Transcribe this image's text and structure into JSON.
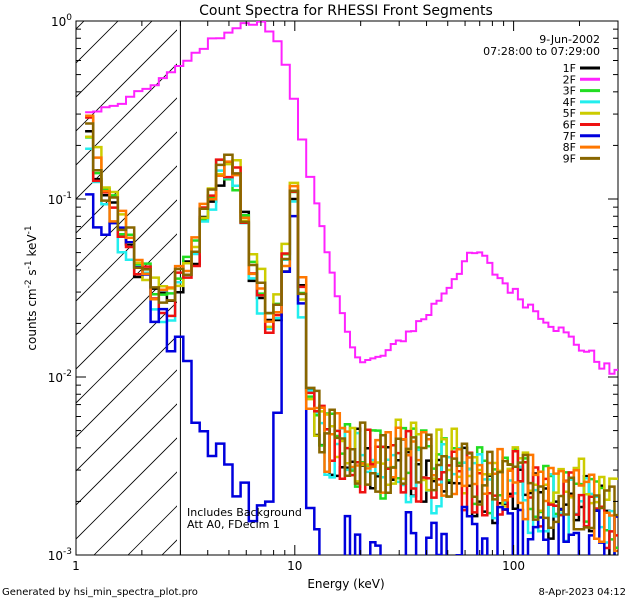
{
  "chart_data": {
    "type": "line",
    "title": "Count Spectra for RHESSI Front Segments",
    "xlabel": "Energy (keV)",
    "ylabel_parts": [
      "counts cm",
      "-2",
      " s",
      "-1",
      " keV",
      "-1"
    ],
    "xscale": "log",
    "yscale": "log",
    "xlim": [
      1,
      300
    ],
    "ylim": [
      0.001,
      1
    ],
    "x_ticks": [
      {
        "value": 1,
        "label": "1"
      },
      {
        "value": 10,
        "label": "10"
      },
      {
        "value": 100,
        "label": "100"
      }
    ],
    "y_ticks": [
      {
        "value": 0.001,
        "base": "10",
        "exp": "-3"
      },
      {
        "value": 0.01,
        "base": "10",
        "exp": "-2"
      },
      {
        "value": 0.1,
        "base": "10",
        "exp": "-1"
      },
      {
        "value": 1,
        "base": "10",
        "exp": "0"
      }
    ],
    "hatch_region_keV": [
      1,
      3
    ],
    "info": {
      "date": "9-Jun-2002",
      "time_range": "07:28:00 to 07:29:00",
      "note_line1": "Includes Background",
      "note_line2": "Att A0, FDecim 1"
    },
    "legend_position": "top-right",
    "series": [
      {
        "name": "1F",
        "color": "#000000",
        "base": 0.3
      },
      {
        "name": "2F",
        "color": "#ff22ff",
        "base": 0.3
      },
      {
        "name": "3F",
        "color": "#22dd22",
        "base": 0.3
      },
      {
        "name": "4F",
        "color": "#22eeee",
        "base": 0.3
      },
      {
        "name": "5F",
        "color": "#cccc00",
        "base": 0.3
      },
      {
        "name": "6F",
        "color": "#ee1111",
        "base": 0.3
      },
      {
        "name": "7F",
        "color": "#0000dd",
        "base": 0.3
      },
      {
        "name": "8F",
        "color": "#ff7700",
        "base": 0.3
      },
      {
        "name": "9F",
        "color": "#886600",
        "base": 0.3
      }
    ],
    "segment_2F": {
      "x": [
        1.1,
        1.5,
        2,
        3,
        4,
        5,
        6,
        7,
        8,
        9,
        10,
        11,
        12,
        13,
        14,
        16,
        18,
        20,
        25,
        30,
        40,
        50,
        60,
        70,
        80,
        100,
        150,
        200,
        250,
        300
      ],
      "y": [
        0.3,
        0.33,
        0.4,
        0.55,
        0.75,
        0.88,
        0.96,
        0.97,
        0.85,
        0.6,
        0.35,
        0.2,
        0.12,
        0.08,
        0.05,
        0.025,
        0.016,
        0.012,
        0.013,
        0.016,
        0.022,
        0.032,
        0.045,
        0.05,
        0.04,
        0.03,
        0.02,
        0.015,
        0.012,
        0.01
      ]
    },
    "segment_typical": {
      "x": [
        1.1,
        1.3,
        1.5,
        1.7,
        2,
        2.3,
        2.7,
        3,
        3.5,
        4,
        4.5,
        5,
        5.5,
        6,
        6.5,
        7,
        7.5,
        8,
        8.5,
        9,
        9.5,
        10,
        10.5,
        11,
        11.5,
        12,
        13,
        14,
        16,
        18,
        20,
        25,
        30,
        40,
        50,
        60,
        80,
        100,
        150,
        200,
        250,
        300
      ],
      "y": [
        0.3,
        0.12,
        0.08,
        0.06,
        0.04,
        0.03,
        0.025,
        0.035,
        0.05,
        0.1,
        0.14,
        0.15,
        0.12,
        0.07,
        0.04,
        0.03,
        0.02,
        0.02,
        0.025,
        0.04,
        0.08,
        0.12,
        0.05,
        0.02,
        0.01,
        0.006,
        0.005,
        0.004,
        0.004,
        0.0035,
        0.0035,
        0.003,
        0.0035,
        0.003,
        0.003,
        0.0028,
        0.0025,
        0.0025,
        0.002,
        0.002,
        0.0018,
        0.0015
      ]
    },
    "segment_7F": {
      "x": [
        1.1,
        1.5,
        2,
        2.5,
        3,
        3.5,
        4,
        5,
        6,
        7,
        8,
        9,
        10,
        10.5,
        11,
        11.5,
        12
      ],
      "y": [
        0.09,
        0.07,
        0.035,
        0.02,
        0.015,
        0.007,
        0.004,
        0.003,
        0.002,
        0.0015,
        0.002,
        0.03,
        0.12,
        0.06,
        0.01,
        0.002,
        0.001
      ]
    },
    "footer_left": "Generated by hsi_min_spectra_plot.pro",
    "footer_right": "8-Apr-2023 04:12"
  }
}
